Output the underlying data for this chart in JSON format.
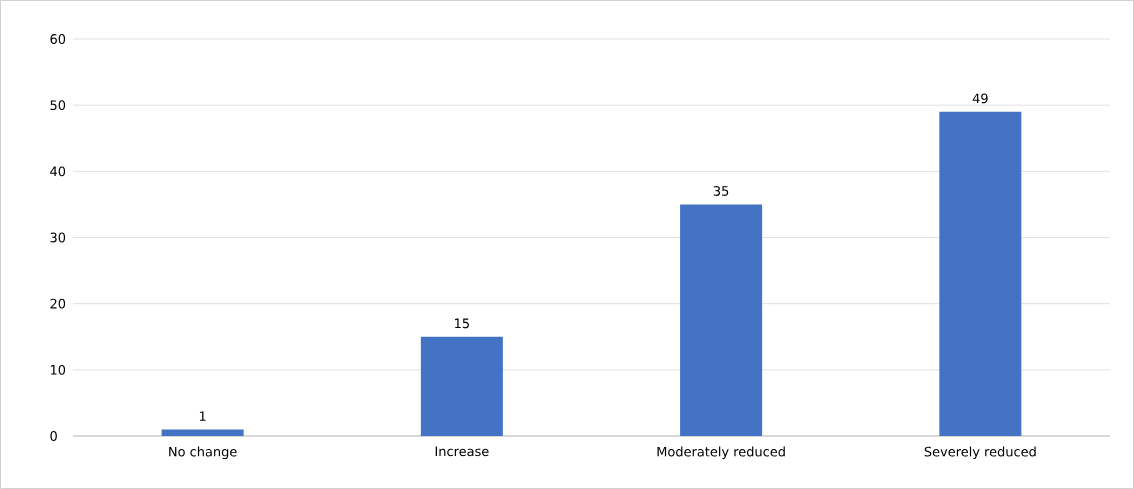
{
  "chart_data": {
    "type": "bar",
    "categories": [
      "No change",
      "Increase",
      "Moderately reduced",
      "Severely reduced"
    ],
    "values": [
      1,
      15,
      35,
      49
    ],
    "color": "#4472c4",
    "ylim": [
      0,
      60
    ],
    "yticks": [
      0,
      10,
      20,
      30,
      40,
      50,
      60
    ],
    "grid": "y",
    "data_labels": true
  }
}
